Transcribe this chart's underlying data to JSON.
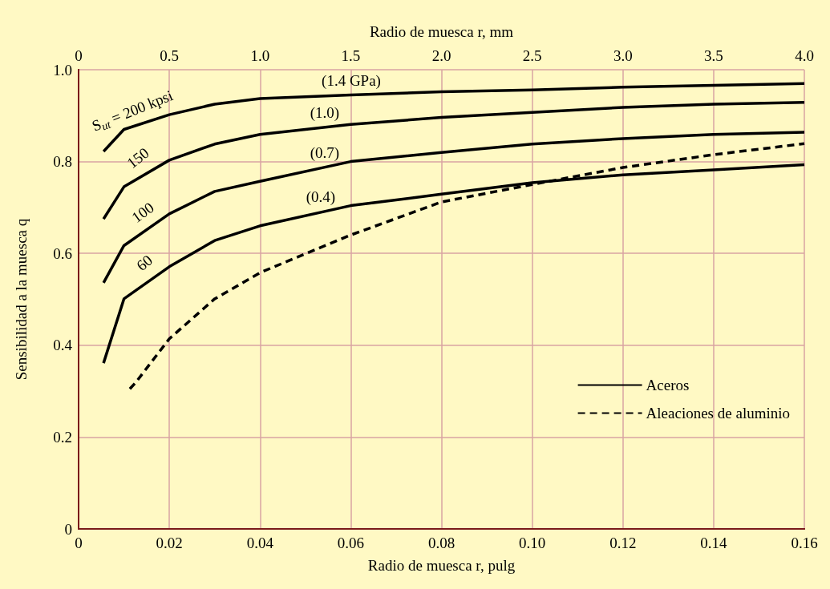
{
  "chart_data": {
    "type": "line",
    "xlabel": "Radio de muesca r, pulg",
    "x2label": "Radio de muesca r, mm",
    "ylabel": "Sensibilidad a la muesca q",
    "xlim": [
      0,
      0.16
    ],
    "xticks": [
      0,
      0.02,
      0.04,
      0.06,
      0.08,
      {
        "value": 0.1,
        "label": "0.10"
      },
      0.12,
      0.14,
      0.16
    ],
    "x2lim": [
      0,
      4.0
    ],
    "x2ticks": [
      0,
      0.5,
      {
        "value": 1,
        "label": "1.0"
      },
      1.5,
      {
        "value": 2,
        "label": "2.0"
      },
      2.5,
      {
        "value": 3,
        "label": "3.0"
      },
      3.5,
      {
        "value": 4,
        "label": "4.0"
      }
    ],
    "ylim": [
      0,
      1.0
    ],
    "yticks": [
      0,
      0.2,
      0.4,
      0.6,
      0.8,
      {
        "value": 1,
        "label": "1.0"
      }
    ],
    "grid": true,
    "legend": "bottom right",
    "marker": "none",
    "series": [
      {
        "name": "Aceros",
        "color": "#000000",
        "line_style": "solid",
        "x": [
          0.0055,
          0.01,
          0.02,
          0.03,
          0.04,
          0.06,
          0.08,
          0.1,
          0.12,
          0.14,
          0.16
        ],
        "values": [
          0.822,
          0.87,
          0.902,
          0.925,
          0.937,
          0.945,
          0.952,
          0.956,
          0.962,
          0.966,
          0.97
        ]
      },
      {
        "color": "#000000",
        "line_style": "solid",
        "x": [
          0.0055,
          0.01,
          0.02,
          0.03,
          0.04,
          0.06,
          0.08,
          0.1,
          0.12,
          0.14,
          0.16
        ],
        "values": [
          0.675,
          0.745,
          0.803,
          0.838,
          0.859,
          0.881,
          0.896,
          0.907,
          0.918,
          0.925,
          0.929
        ]
      },
      {
        "color": "#000000",
        "line_style": "solid",
        "x": [
          0.0055,
          0.01,
          0.02,
          0.03,
          0.04,
          0.06,
          0.08,
          0.1,
          0.12,
          0.14,
          0.16
        ],
        "values": [
          0.536,
          0.617,
          0.686,
          0.735,
          0.757,
          0.8,
          0.82,
          0.838,
          0.85,
          0.859,
          0.864
        ]
      },
      {
        "color": "#000000",
        "line_style": "solid",
        "x": [
          0.0055,
          0.01,
          0.02,
          0.03,
          0.04,
          0.06,
          0.08,
          0.1,
          0.12,
          0.14,
          0.16
        ],
        "values": [
          0.361,
          0.501,
          0.571,
          0.628,
          0.66,
          0.704,
          0.729,
          0.754,
          0.771,
          0.782,
          0.793
        ]
      },
      {
        "name": "Aleaciones de aluminio",
        "color": "#000000",
        "line_style": "dashed",
        "x": [
          0.0113,
          0.0126,
          0.02,
          0.03,
          0.04,
          0.06,
          0.08,
          0.1,
          0.12,
          0.14,
          0.16
        ],
        "values": [
          0.305,
          0.319,
          0.414,
          0.501,
          0.558,
          0.64,
          0.712,
          0.75,
          0.787,
          0.815,
          0.839
        ]
      }
    ],
    "annotations": [
      "S$_{ut}$ = 200 kpsi",
      "150",
      "100",
      "60",
      "(1.4 GPa)",
      "(1.0)",
      "(0.7)",
      "(0.4)"
    ]
  }
}
